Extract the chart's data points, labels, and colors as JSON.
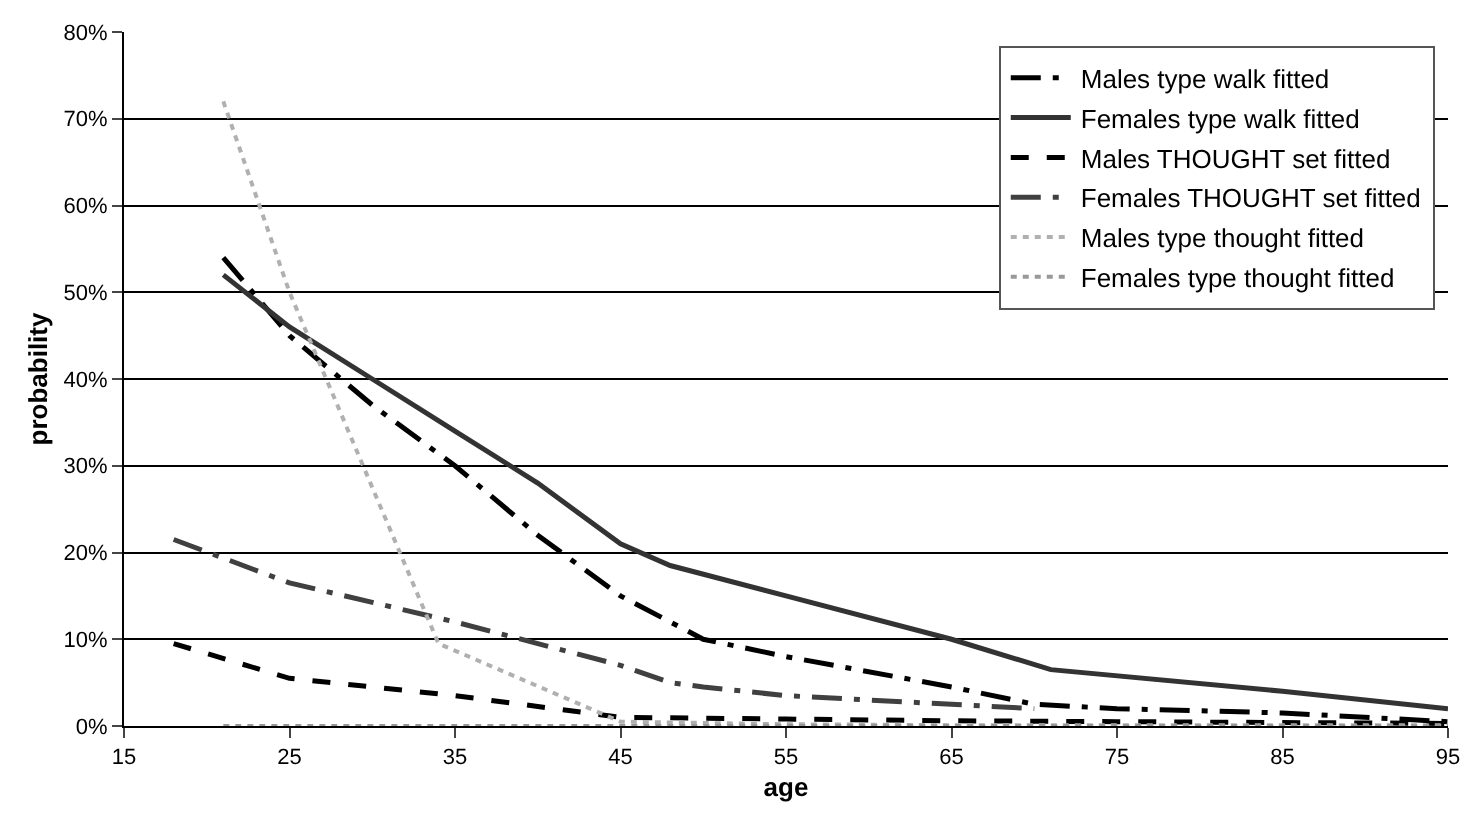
{
  "chart_data": {
    "type": "line",
    "xlabel": "age",
    "ylabel": "probability",
    "xlim": [
      15,
      95
    ],
    "xticks": [
      15,
      25,
      35,
      45,
      55,
      65,
      75,
      85,
      95
    ],
    "ylim": [
      0,
      80
    ],
    "yticks": [
      {
        "value": 0,
        "label": "0%"
      },
      {
        "value": 10,
        "label": "10%"
      },
      {
        "value": 20,
        "label": "20%"
      },
      {
        "value": 30,
        "label": "30%"
      },
      {
        "value": 40,
        "label": "40%"
      },
      {
        "value": 50,
        "label": "50%"
      },
      {
        "value": 60,
        "label": "60%"
      },
      {
        "value": 70,
        "label": "70%"
      },
      {
        "value": 80,
        "label": "80%"
      }
    ],
    "grid": "y",
    "legend": "top right",
    "marker": "none",
    "series": [
      {
        "name": "Males type walk fitted",
        "color": "#000000",
        "line_style": "dashdot",
        "x": [
          21,
          25,
          30,
          35,
          40,
          45,
          50,
          55,
          65,
          70,
          75,
          85,
          95
        ],
        "values": [
          54,
          45,
          37,
          30,
          22,
          15,
          10,
          8,
          4.5,
          2.5,
          2,
          1.5,
          0.5
        ]
      },
      {
        "name": "Females type walk fitted",
        "color": "#333333",
        "line_style": "solid",
        "x": [
          21,
          25,
          30,
          35,
          40,
          45,
          48,
          55,
          65,
          71,
          85,
          95
        ],
        "values": [
          52,
          46,
          40,
          34,
          28,
          21,
          18.5,
          15,
          10,
          6.5,
          4,
          2
        ]
      },
      {
        "name": "Males THOUGHT set fitted",
        "color": "#000000",
        "line_style": "dashed",
        "x": [
          18,
          25,
          35,
          45,
          55,
          65,
          75,
          85,
          95
        ],
        "values": [
          9.5,
          5.5,
          3.5,
          1,
          0.8,
          0.6,
          0.5,
          0.4,
          0.3
        ]
      },
      {
        "name": "Females THOUGHT set fitted",
        "color": "#404040",
        "line_style": "dashdot",
        "x": [
          18,
          25,
          35,
          45,
          48,
          50,
          55,
          60,
          65,
          70
        ],
        "values": [
          21.5,
          16.5,
          12,
          7,
          5,
          4.5,
          3.5,
          3,
          2.5,
          2
        ]
      },
      {
        "name": "Males type thought fitted",
        "color": "#b0b0b0",
        "line_style": "dotted",
        "x": [
          21,
          25,
          34,
          45,
          55,
          65,
          75,
          85,
          95
        ],
        "values": [
          72,
          50,
          9.5,
          0.5,
          0.2,
          0.1,
          0.1,
          0.1,
          0.1
        ]
      },
      {
        "name": "Females type thought fitted",
        "color": "#999999",
        "line_style": "dotted",
        "x": [
          21,
          35,
          45,
          55,
          65,
          75,
          85,
          95
        ],
        "values": [
          0,
          0,
          0,
          0,
          0,
          0,
          0,
          0
        ]
      }
    ]
  }
}
